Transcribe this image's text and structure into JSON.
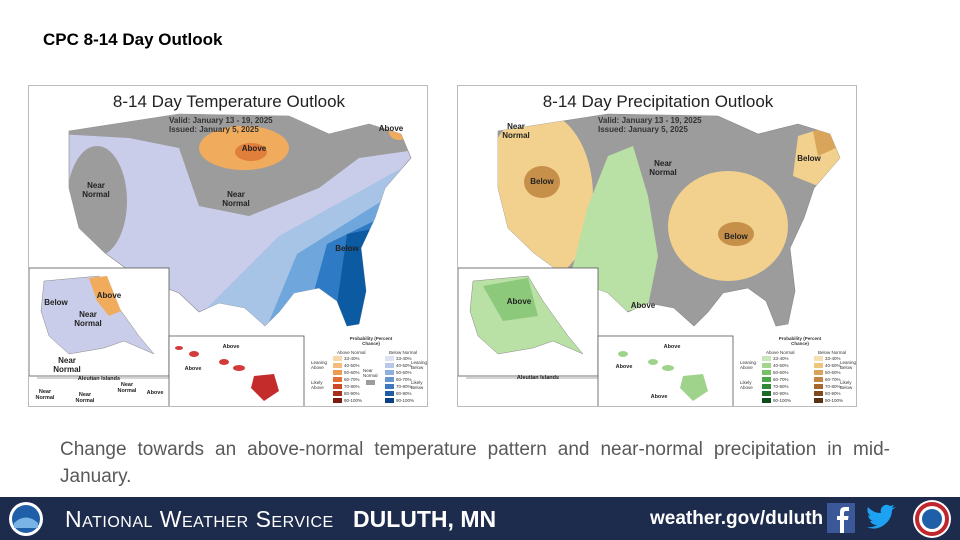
{
  "slide_title": "CPC 8-14 Day Outlook",
  "maps": [
    {
      "title": "8-14 Day Temperature Outlook",
      "valid": "Valid:  January 13 - 19, 2025",
      "issued": "Issued:  January 5, 2025",
      "labels": [
        "Above",
        "Above",
        "Near Normal",
        "Near Normal",
        "Below",
        "Below",
        "Above",
        "Near Normal",
        "Near Normal",
        "Aleutian Islands",
        "Near Normal",
        "Near Normal",
        "Near Normal",
        "Above",
        "Above",
        "Above"
      ],
      "legend": {
        "title": "Probability (Percent Chance)",
        "left_header": "Above Normal",
        "right_header": "Below Normal",
        "left_top": "Leaning Above",
        "left_bottom": "Likely Above",
        "middle": "Near Normal",
        "right_top": "Leaning Below",
        "right_bottom": "Likely Below",
        "bins": [
          "33-40%",
          "40-50%",
          "50-60%",
          "60-70%",
          "70-80%",
          "80-90%",
          "90-100%"
        ]
      }
    },
    {
      "title": "8-14 Day Precipitation Outlook",
      "valid": "Valid:  January 13 - 19, 2025",
      "issued": "Issued:  January 5, 2025",
      "labels": [
        "Near Normal",
        "Near Normal",
        "Below",
        "Below",
        "Below",
        "Above",
        "Above",
        "Aleutian Islands",
        "Above",
        "Above",
        "Above"
      ],
      "legend": {
        "title": "Probability (Percent Chance)",
        "left_header": "Above Normal",
        "right_header": "Below Normal",
        "left_top": "Leaning Above",
        "left_bottom": "Likely Above",
        "right_top": "Leaning Below",
        "right_bottom": "Likely Below",
        "bins": [
          "33-40%",
          "40-50%",
          "50-60%",
          "60-70%",
          "70-80%",
          "80-90%",
          "90-100%"
        ]
      }
    }
  ],
  "caption": "Change towards an above-normal temperature pattern and near-normal precipitation in mid-January.",
  "footer": {
    "org": "National Weather Service",
    "office": "Duluth, MN",
    "url": "weather.gov/duluth"
  }
}
